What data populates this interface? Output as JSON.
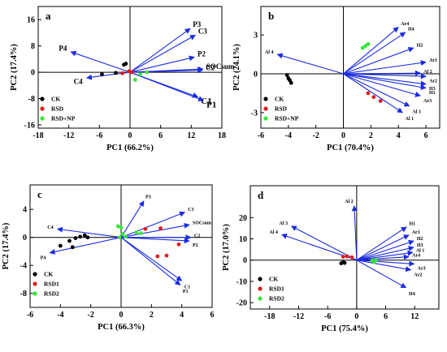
{
  "chart_data": [
    {
      "type": "scatter",
      "panel_label": "a",
      "xlabel": "PC1 (66.2%)",
      "ylabel": "PC2 (17.4%)",
      "xlim": [
        -18,
        18
      ],
      "ylim": [
        -17,
        20
      ],
      "xticks": [
        -18,
        -12,
        -6,
        0,
        6,
        12,
        18
      ],
      "yticks": [
        -16,
        -8,
        0,
        8,
        16
      ],
      "xtick_labels": [
        "-18",
        "-12",
        "-6",
        "0",
        "6",
        "12",
        "18"
      ],
      "ytick_labels": [
        "-16",
        "-8",
        "0",
        "8",
        "16"
      ],
      "legend_position": "bottom-left",
      "groups": [
        {
          "name": "CK",
          "color": "#000000",
          "points": [
            [
              -5.5,
              -0.6
            ],
            [
              -2.8,
              -0.2
            ],
            [
              -1.2,
              2.3
            ],
            [
              -0.8,
              2.6
            ]
          ]
        },
        {
          "name": "RSD",
          "color": "#e31a1c",
          "points": [
            [
              -1.5,
              -0.3
            ],
            [
              -0.2,
              0.3
            ],
            [
              0.3,
              0.0
            ]
          ]
        },
        {
          "name": "RSD+NP",
          "color": "#39e639",
          "points": [
            [
              1.0,
              -2.3
            ],
            [
              2.0,
              -0.6
            ],
            [
              3.3,
              0.0
            ]
          ]
        }
      ],
      "vectors": [
        {
          "label": "P3",
          "x": 11.8,
          "y": 13.3,
          "label_size": 9
        },
        {
          "label": "C3",
          "x": 12.8,
          "y": 11.3,
          "label_size": 9
        },
        {
          "label": "P2",
          "x": 12.6,
          "y": 4.6,
          "label_size": 9
        },
        {
          "label": "SOCsum",
          "x": 14.3,
          "y": 1.0,
          "label_size": 9
        },
        {
          "label": "C2",
          "x": 14.2,
          "y": 0.6,
          "label_size": 9
        },
        {
          "label": "C1",
          "x": 13.3,
          "y": -7.5,
          "label_size": 11
        },
        {
          "label": "P1",
          "x": 14.4,
          "y": -8.6,
          "label_size": 11
        },
        {
          "label": "P4",
          "x": -11.6,
          "y": 6.2,
          "label_size": 9
        },
        {
          "label": "C4",
          "x": -8.5,
          "y": -1.7,
          "label_size": 9
        }
      ]
    },
    {
      "type": "scatter",
      "panel_label": "b",
      "xlabel": "PC1 (70.4%)",
      "ylabel": "PC2 (24.1%)",
      "xlim": [
        -6,
        7
      ],
      "ylim": [
        -4.2,
        5.2
      ],
      "xticks": [
        -6,
        -4,
        -2,
        0,
        2,
        4,
        6
      ],
      "yticks": [
        -3,
        0,
        3
      ],
      "xtick_labels": [
        "-6",
        "-4",
        "-2",
        "0",
        "2",
        "4",
        "6"
      ],
      "ytick_labels": [
        "-3",
        "0",
        "3"
      ],
      "legend_position": "bottom-left",
      "groups": [
        {
          "name": "CK",
          "color": "#000000",
          "points": [
            [
              -4.1,
              -0.1
            ],
            [
              -4.0,
              -0.35
            ],
            [
              -3.9,
              -0.5
            ],
            [
              -3.8,
              -0.7
            ]
          ]
        },
        {
          "name": "RSD",
          "color": "#e31a1c",
          "points": [
            [
              1.8,
              -1.5
            ],
            [
              2.2,
              -1.8
            ],
            [
              2.7,
              -2.1
            ]
          ]
        },
        {
          "name": "RSD+NP",
          "color": "#39e639",
          "points": [
            [
              1.4,
              2.0
            ],
            [
              1.6,
              2.15
            ],
            [
              1.8,
              2.3
            ]
          ]
        }
      ],
      "vectors": [
        {
          "label": "Ar4",
          "x": 4.0,
          "y": 3.6,
          "label_size": 6
        },
        {
          "label": "H4",
          "x": 4.5,
          "y": 3.2,
          "label_size": 6
        },
        {
          "label": "H2",
          "x": 5.1,
          "y": 2.0,
          "label_size": 6
        },
        {
          "label": "Ar1",
          "x": 6.0,
          "y": 0.9,
          "label_size": 6
        },
        {
          "label": "Al 2",
          "x": 5.6,
          "y": 0.05,
          "label_size": 6
        },
        {
          "label": "Ar2",
          "x": 6.0,
          "y": -0.2,
          "label_size": 6
        },
        {
          "label": "H3",
          "x": 6.0,
          "y": -0.8,
          "label_size": 6
        },
        {
          "label": "H1",
          "x": 6.0,
          "y": -1.1,
          "label_size": 6
        },
        {
          "label": "Ar3",
          "x": 5.6,
          "y": -1.7,
          "label_size": 6
        },
        {
          "label": "Al 3",
          "x": 4.8,
          "y": -2.5,
          "label_size": 6
        },
        {
          "label": "Al 1",
          "x": 4.3,
          "y": -3.0,
          "label_size": 6
        },
        {
          "label": "Al 4",
          "x": -4.8,
          "y": 1.5,
          "label_size": 6
        }
      ]
    },
    {
      "type": "scatter",
      "panel_label": "c",
      "xlabel": "PC1 (66.3%)",
      "ylabel": "PC2 (17.4%)",
      "xlim": [
        -6,
        6
      ],
      "ylim": [
        -10,
        7.5
      ],
      "xticks": [
        -6,
        -4,
        -2,
        0,
        2,
        4,
        6
      ],
      "yticks": [
        -8,
        -4,
        0,
        4
      ],
      "xtick_labels": [
        "-6",
        "-4",
        "-2",
        "0",
        "2",
        "4",
        "6"
      ],
      "ytick_labels": [
        "-8",
        "-4",
        "0",
        "4"
      ],
      "legend_position": "bottom-left",
      "groups": [
        {
          "name": "CK",
          "color": "#000000",
          "points": [
            [
              -4.0,
              -1.2
            ],
            [
              -3.4,
              -0.5
            ],
            [
              -3.2,
              -1.4
            ],
            [
              -3.0,
              -0.1
            ],
            [
              -2.7,
              0.1
            ],
            [
              -2.4,
              0.3
            ],
            [
              -2.2,
              0.0
            ]
          ]
        },
        {
          "name": "RSD1",
          "color": "#e31a1c",
          "points": [
            [
              1.6,
              1.2
            ],
            [
              2.6,
              1.3
            ],
            [
              3.8,
              -1.0
            ],
            [
              2.4,
              -2.7
            ],
            [
              3.0,
              -2.6
            ]
          ]
        },
        {
          "name": "RSD2",
          "color": "#39e639",
          "points": [
            [
              -0.2,
              1.6
            ],
            [
              0.0,
              1.4
            ],
            [
              0.1,
              0.5
            ],
            [
              -0.1,
              0.0
            ],
            [
              0.3,
              0.1
            ],
            [
              1.0,
              0.7
            ],
            [
              1.3,
              0.6
            ]
          ]
        }
      ],
      "vectors": [
        {
          "label": "P3",
          "x": 1.5,
          "y": 5.2,
          "label_size": 6
        },
        {
          "label": "C3",
          "x": 4.2,
          "y": 3.6,
          "label_size": 6
        },
        {
          "label": "SOCsum",
          "x": 4.5,
          "y": 1.8,
          "label_size": 6
        },
        {
          "label": "C2",
          "x": 4.6,
          "y": 0.0,
          "label_size": 6
        },
        {
          "label": "P2",
          "x": 4.5,
          "y": -0.5,
          "label_size": 6
        },
        {
          "label": "C1",
          "x": 4.0,
          "y": -6.2,
          "label_size": 6
        },
        {
          "label": "P1",
          "x": 3.9,
          "y": -6.8,
          "label_size": 6
        },
        {
          "label": "C4",
          "x": -4.2,
          "y": 1.2,
          "label_size": 6
        },
        {
          "label": "P4",
          "x": -4.7,
          "y": -2.2,
          "label_size": 6
        }
      ]
    },
    {
      "type": "scatter",
      "panel_label": "d",
      "xlabel": "PC1 (75.4%)",
      "ylabel": "PC2 (17.0%)",
      "xlim": [
        -22,
        17
      ],
      "ylim": [
        -23,
        35
      ],
      "xticks": [
        -18,
        -12,
        -6,
        0,
        6,
        12
      ],
      "yticks": [
        -20,
        -10,
        0,
        10,
        20
      ],
      "xtick_labels": [
        "-18",
        "-12",
        "-6",
        "0",
        "6",
        "12"
      ],
      "ytick_labels": [
        "-20",
        "-10",
        "0",
        "10",
        "20"
      ],
      "legend_position": "bottom-left",
      "groups": [
        {
          "name": "CK",
          "color": "#000000",
          "points": [
            [
              -3.2,
              -1.5
            ],
            [
              -2.8,
              -1.0
            ],
            [
              -2.5,
              -1.3
            ]
          ]
        },
        {
          "name": "RSD1",
          "color": "#e31a1c",
          "points": [
            [
              -2.8,
              1.6
            ],
            [
              -2.0,
              1.8
            ],
            [
              -1.0,
              1.3
            ]
          ]
        },
        {
          "name": "RSD2",
          "color": "#39e639",
          "points": [
            [
              3.2,
              -0.2
            ],
            [
              3.6,
              -0.8
            ],
            [
              4.0,
              0.0
            ]
          ]
        }
      ],
      "vectors": [
        {
          "label": "Al 2",
          "x": -0.5,
          "y": 25.5,
          "label_size": 6
        },
        {
          "label": "Al 3",
          "x": -13.5,
          "y": 16.0,
          "label_size": 6
        },
        {
          "label": "Al 4",
          "x": -15.5,
          "y": 12.0,
          "label_size": 6
        },
        {
          "label": "H1",
          "x": 10.3,
          "y": 15.6,
          "label_size": 6
        },
        {
          "label": "Ar1",
          "x": 10.8,
          "y": 11.8,
          "label_size": 6
        },
        {
          "label": "H2",
          "x": 11.8,
          "y": 9.0,
          "label_size": 6
        },
        {
          "label": "H3",
          "x": 11.8,
          "y": 6.0,
          "label_size": 6
        },
        {
          "label": "Al 1",
          "x": 11.6,
          "y": 3.6,
          "label_size": 6
        },
        {
          "label": "Ar4",
          "x": 10.8,
          "y": 1.6,
          "label_size": 6
        },
        {
          "label": "Ar3",
          "x": 11.9,
          "y": -1.8,
          "label_size": 6
        },
        {
          "label": "Ar2",
          "x": 11.2,
          "y": -4.6,
          "label_size": 6
        },
        {
          "label": "H4",
          "x": 10.2,
          "y": -13.0,
          "label_size": 6
        }
      ]
    }
  ]
}
